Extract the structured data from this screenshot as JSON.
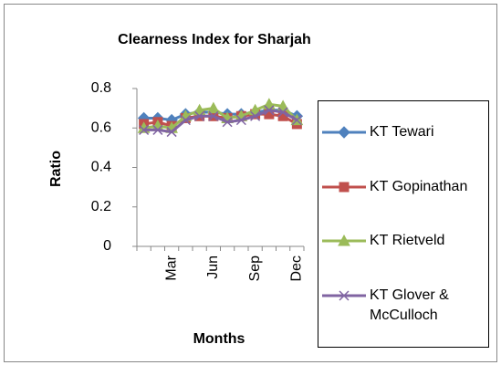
{
  "chart_data": {
    "type": "line",
    "title": "Clearness Index for Sharjah",
    "x_label": "Months",
    "y_label": "Ratio",
    "categories": [
      null,
      null,
      "Mar",
      null,
      null,
      "Jun",
      null,
      null,
      "Sep",
      null,
      null,
      "Dec"
    ],
    "ylim": [
      0,
      0.8
    ],
    "yticks": [
      0,
      0.2,
      0.4,
      0.6,
      0.8
    ],
    "grid": false,
    "legend": "right",
    "series": [
      {
        "name": "KT Tewari",
        "color": "#4f81bd",
        "marker": "diamond",
        "values": [
          0.65,
          0.65,
          0.64,
          0.67,
          0.68,
          0.68,
          0.67,
          0.67,
          0.68,
          0.69,
          0.69,
          0.66
        ]
      },
      {
        "name": "KT Gopinathan",
        "color": "#c0504d",
        "marker": "square",
        "values": [
          0.62,
          0.63,
          0.61,
          0.65,
          0.66,
          0.66,
          0.65,
          0.66,
          0.67,
          0.67,
          0.66,
          0.62
        ]
      },
      {
        "name": "KT Rietveld",
        "color": "#9bbb59",
        "marker": "triangle",
        "values": [
          0.6,
          0.61,
          0.6,
          0.66,
          0.69,
          0.7,
          0.65,
          0.66,
          0.69,
          0.72,
          0.71,
          0.64
        ]
      },
      {
        "name": "KT Glover & McCulloch",
        "color": "#8064a2",
        "marker": "x",
        "values": [
          0.59,
          0.59,
          0.58,
          0.64,
          0.66,
          0.66,
          0.63,
          0.64,
          0.66,
          0.69,
          0.68,
          0.64
        ]
      }
    ]
  }
}
